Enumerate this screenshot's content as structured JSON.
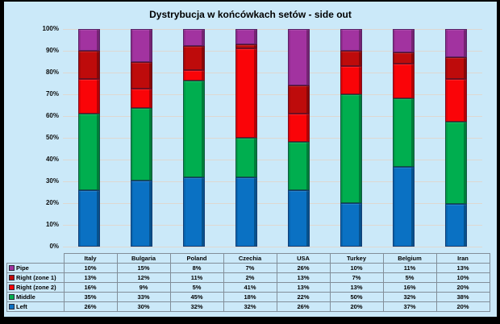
{
  "title": "Dystrybucja w końcówkach setów - side out",
  "colors": {
    "canvas_background": "#CBE9F9",
    "gridline": "#DED8D1",
    "table_border": "#828E99",
    "frame": "#000000"
  },
  "chart_data": {
    "type": "bar",
    "subtype": "100%-stacked-column",
    "title": "Dystrybucja w końcówkach setów - side out",
    "categories": [
      "Italy",
      "Bulgaria",
      "Poland",
      "Czechia",
      "USA",
      "Turkey",
      "Belgium",
      "Iran"
    ],
    "series": [
      {
        "name": "Left",
        "color": "#0A71C3",
        "values": [
          26,
          30,
          32,
          32,
          26,
          20,
          37,
          20
        ]
      },
      {
        "name": "Middle",
        "color": "#00AE4F",
        "values": [
          35,
          33,
          45,
          18,
          22,
          50,
          32,
          38
        ]
      },
      {
        "name": "Right (zone 2)",
        "color": "#FA0408",
        "values": [
          16,
          9,
          5,
          41,
          13,
          13,
          16,
          20
        ]
      },
      {
        "name": "Right (zone 1)",
        "color": "#BE0B0B",
        "values": [
          13,
          12,
          11,
          2,
          13,
          7,
          5,
          10
        ]
      },
      {
        "name": "Pipe",
        "color": "#A233A0",
        "values": [
          10,
          15,
          8,
          7,
          26,
          10,
          11,
          13
        ]
      }
    ],
    "y_ticks": [
      "0%",
      "10%",
      "20%",
      "30%",
      "40%",
      "50%",
      "60%",
      "70%",
      "80%",
      "90%",
      "100%"
    ],
    "ylim": [
      0,
      100
    ],
    "grid": true,
    "legend_position": "table-rows",
    "value_suffix": "%"
  }
}
